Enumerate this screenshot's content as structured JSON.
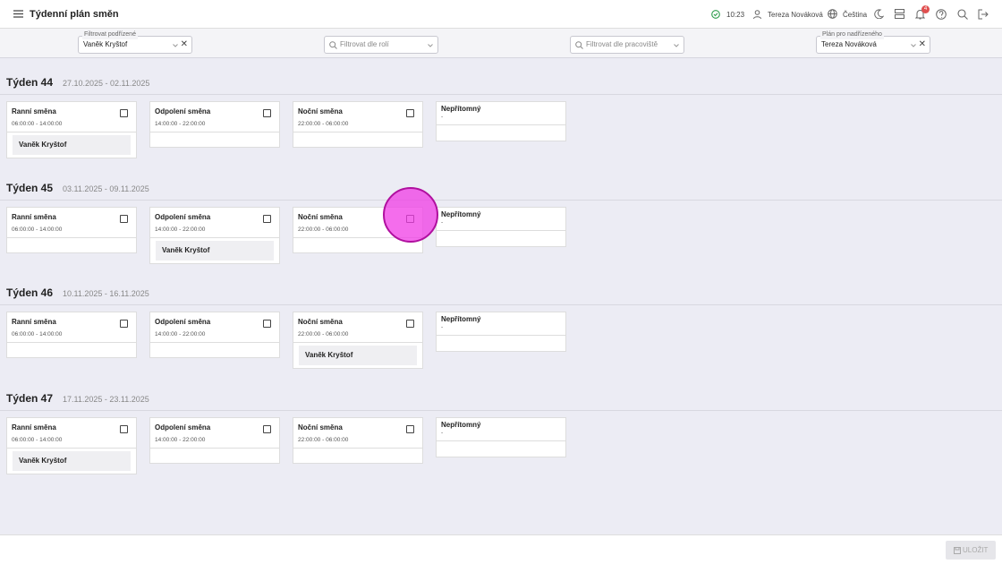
{
  "header": {
    "title": "Týdenní plán směn",
    "time": "10:23",
    "user": "Tereza Nováková",
    "language": "Čeština",
    "notifications": 4
  },
  "filters": [
    {
      "label": "Filtrovat podřízené",
      "value": "Vaněk Kryštof"
    },
    {
      "placeholder": "Filtrovat dle rolí"
    },
    {
      "placeholder": "Filtrovat dle pracoviště"
    },
    {
      "label": "Plán pro nadřízeného",
      "value": "Tereza Nováková"
    }
  ],
  "weeks": [
    {
      "title": "Týden 44",
      "range": "27.10.2025 - 02.11.2025",
      "shifts": [
        {
          "name": "Ranní směna",
          "time": "06:00:00 - 14:00:00",
          "employees": [
            "Vaněk Kryštof"
          ]
        },
        {
          "name": "Odpolení směna",
          "time": "14:00:00 - 22:00:00",
          "employees": []
        },
        {
          "name": "Noční směna",
          "time": "22:00:00 - 06:00:00",
          "employees": []
        }
      ],
      "absent": {
        "name": "Nepřítomný",
        "value": "-"
      }
    },
    {
      "title": "Týden 45",
      "range": "03.11.2025 - 09.11.2025",
      "shifts": [
        {
          "name": "Ranní směna",
          "time": "06:00:00 - 14:00:00",
          "employees": []
        },
        {
          "name": "Odpolení směna",
          "time": "14:00:00 - 22:00:00",
          "employees": [
            "Vaněk Kryštof"
          ]
        },
        {
          "name": "Noční směna",
          "time": "22:00:00 - 06:00:00",
          "employees": []
        }
      ],
      "absent": {
        "name": "Nepřítomný",
        "value": "-"
      }
    },
    {
      "title": "Týden 46",
      "range": "10.11.2025 - 16.11.2025",
      "shifts": [
        {
          "name": "Ranní směna",
          "time": "06:00:00 - 14:00:00",
          "employees": []
        },
        {
          "name": "Odpolení směna",
          "time": "14:00:00 - 22:00:00",
          "employees": []
        },
        {
          "name": "Noční směna",
          "time": "22:00:00 - 06:00:00",
          "employees": [
            "Vaněk Kryštof"
          ]
        }
      ],
      "absent": {
        "name": "Nepřítomný",
        "value": "-"
      }
    },
    {
      "title": "Týden 47",
      "range": "17.11.2025 - 23.11.2025",
      "shifts": [
        {
          "name": "Ranní směna",
          "time": "06:00:00 - 14:00:00",
          "employees": [
            "Vaněk Kryštof"
          ]
        },
        {
          "name": "Odpolení směna",
          "time": "14:00:00 - 22:00:00",
          "employees": []
        },
        {
          "name": "Noční směna",
          "time": "22:00:00 - 06:00:00",
          "employees": []
        }
      ],
      "absent": {
        "name": "Nepřítomný",
        "value": "-"
      }
    }
  ],
  "save": "ULOŽIT"
}
